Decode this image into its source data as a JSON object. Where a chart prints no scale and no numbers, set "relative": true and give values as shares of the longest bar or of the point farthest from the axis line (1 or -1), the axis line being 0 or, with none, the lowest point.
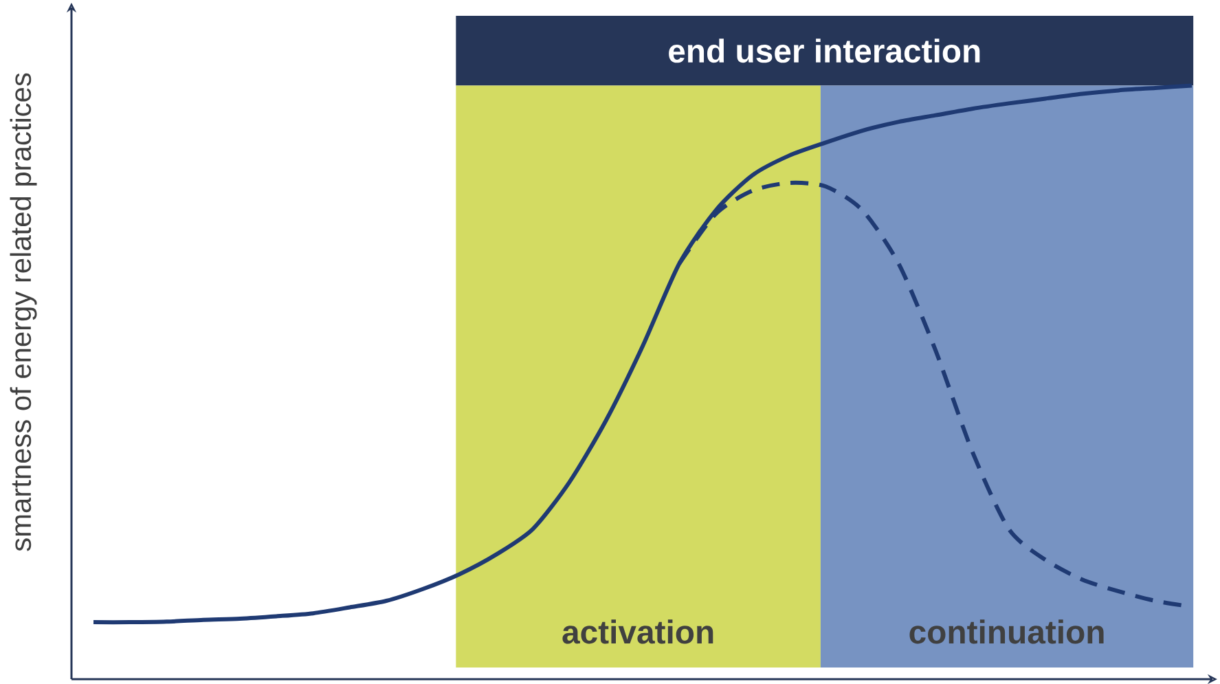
{
  "chart_data": {
    "type": "line",
    "relative": true,
    "ylabel": "smartness of energy related practices",
    "categories": [
      null,
      null,
      null,
      null,
      null,
      null,
      null,
      null,
      null,
      null,
      null,
      null,
      null,
      null,
      null,
      null,
      null,
      null,
      null,
      null,
      null,
      null,
      null,
      null,
      null,
      null,
      null,
      null,
      null,
      null,
      null
    ],
    "series": [
      {
        "color": "#1f3a73",
        "line_style": "solid",
        "values": [
          0.096,
          0.096,
          0.097,
          0.1,
          0.102,
          0.106,
          0.111,
          0.121,
          0.132,
          0.152,
          0.177,
          0.21,
          0.253,
          0.332,
          0.436,
          0.561,
          0.7,
          0.79,
          0.849,
          0.882,
          0.904,
          0.924,
          0.939,
          0.95,
          0.961,
          0.97,
          0.978,
          0.986,
          0.992,
          0.996,
          1
        ]
      },
      {
        "color": "#1f3a73",
        "line_style": "dashed",
        "values": [
          null,
          null,
          null,
          null,
          null,
          null,
          null,
          null,
          null,
          null,
          null,
          null,
          null,
          null,
          null,
          null,
          0.7,
          0.784,
          0.823,
          0.836,
          0.83,
          0.79,
          0.699,
          0.554,
          0.384,
          0.253,
          0.201,
          0.168,
          0.148,
          0.132,
          0.122
        ]
      }
    ],
    "annotations": [
      "end user interaction",
      "activation",
      "continuation"
    ]
  }
}
